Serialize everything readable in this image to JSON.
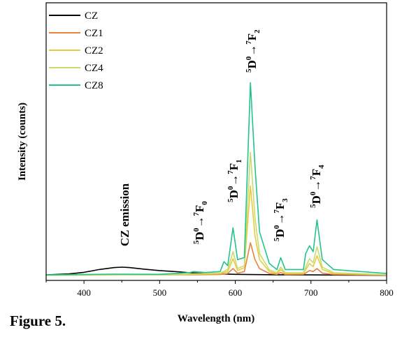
{
  "caption": "Figure 5.",
  "chart_data": {
    "type": "line",
    "xlabel": "Wavelength (nm)",
    "ylabel": "Intensity (counts)",
    "xlim": [
      350,
      800
    ],
    "ylim": [
      0,
      100
    ],
    "xticks": [
      400,
      500,
      600,
      700,
      800
    ],
    "grid": false,
    "legend_position": "top-left",
    "series": [
      {
        "name": "CZ",
        "color": "#000000",
        "points": [
          [
            350,
            0.3
          ],
          [
            380,
            0.8
          ],
          [
            400,
            1.6
          ],
          [
            420,
            3.0
          ],
          [
            440,
            4.0
          ],
          [
            450,
            4.2
          ],
          [
            460,
            4.0
          ],
          [
            480,
            3.2
          ],
          [
            500,
            2.5
          ],
          [
            520,
            2.0
          ],
          [
            540,
            1.4
          ],
          [
            560,
            1.0
          ],
          [
            580,
            0.8
          ],
          [
            600,
            0.6
          ],
          [
            620,
            0.5
          ],
          [
            650,
            0.4
          ],
          [
            700,
            0.3
          ],
          [
            750,
            0.2
          ],
          [
            800,
            0.1
          ]
        ]
      },
      {
        "name": "CZ1",
        "color": "#e8823c",
        "points": [
          [
            350,
            0.2
          ],
          [
            500,
            0.3
          ],
          [
            540,
            0.4
          ],
          [
            580,
            0.5
          ],
          [
            590,
            1.0
          ],
          [
            597,
            3.5
          ],
          [
            603,
            1.2
          ],
          [
            612,
            2.0
          ],
          [
            620,
            16.5
          ],
          [
            626,
            8.0
          ],
          [
            632,
            3.5
          ],
          [
            645,
            1.0
          ],
          [
            655,
            0.6
          ],
          [
            660,
            1.5
          ],
          [
            666,
            0.5
          ],
          [
            690,
            0.6
          ],
          [
            698,
            2.5
          ],
          [
            703,
            2.0
          ],
          [
            708,
            3.5
          ],
          [
            715,
            1.2
          ],
          [
            730,
            0.5
          ],
          [
            800,
            0.2
          ]
        ]
      },
      {
        "name": "CZ2",
        "color": "#e6cc3c",
        "points": [
          [
            350,
            0.2
          ],
          [
            500,
            0.3
          ],
          [
            540,
            0.6
          ],
          [
            580,
            0.9
          ],
          [
            590,
            2.0
          ],
          [
            597,
            8.5
          ],
          [
            603,
            2.5
          ],
          [
            612,
            4.0
          ],
          [
            620,
            45.0
          ],
          [
            626,
            20.0
          ],
          [
            632,
            8.0
          ],
          [
            645,
            2.0
          ],
          [
            655,
            1.0
          ],
          [
            660,
            3.0
          ],
          [
            666,
            1.0
          ],
          [
            690,
            1.0
          ],
          [
            698,
            6.0
          ],
          [
            703,
            4.5
          ],
          [
            708,
            10.0
          ],
          [
            715,
            3.0
          ],
          [
            730,
            1.0
          ],
          [
            800,
            0.3
          ]
        ]
      },
      {
        "name": "CZ4",
        "color": "#c8dc6e",
        "points": [
          [
            350,
            0.2
          ],
          [
            500,
            0.3
          ],
          [
            540,
            0.8
          ],
          [
            580,
            1.2
          ],
          [
            590,
            3.0
          ],
          [
            597,
            12.0
          ],
          [
            603,
            3.5
          ],
          [
            612,
            5.0
          ],
          [
            620,
            62.0
          ],
          [
            626,
            29.0
          ],
          [
            632,
            11.0
          ],
          [
            645,
            2.8
          ],
          [
            655,
            1.4
          ],
          [
            660,
            4.2
          ],
          [
            666,
            1.4
          ],
          [
            690,
            1.4
          ],
          [
            698,
            8.5
          ],
          [
            703,
            6.5
          ],
          [
            708,
            14.5
          ],
          [
            715,
            4.2
          ],
          [
            730,
            1.4
          ],
          [
            800,
            0.4
          ]
        ]
      },
      {
        "name": "CZ8",
        "color": "#23c38c",
        "points": [
          [
            350,
            0.3
          ],
          [
            440,
            0.7
          ],
          [
            500,
            0.6
          ],
          [
            520,
            1.0
          ],
          [
            540,
            1.5
          ],
          [
            545,
            2.0
          ],
          [
            560,
            1.5
          ],
          [
            580,
            2.0
          ],
          [
            585,
            7.0
          ],
          [
            590,
            5.0
          ],
          [
            597,
            24.0
          ],
          [
            603,
            8.0
          ],
          [
            612,
            9.0
          ],
          [
            620,
            97.0
          ],
          [
            626,
            55.0
          ],
          [
            632,
            22.0
          ],
          [
            645,
            6.0
          ],
          [
            655,
            3.0
          ],
          [
            660,
            9.0
          ],
          [
            666,
            3.0
          ],
          [
            690,
            3.0
          ],
          [
            693,
            11.0
          ],
          [
            698,
            15.0
          ],
          [
            703,
            12.0
          ],
          [
            708,
            28.0
          ],
          [
            715,
            8.0
          ],
          [
            730,
            3.0
          ],
          [
            800,
            1.0
          ]
        ]
      }
    ],
    "annotations": [
      {
        "id": "cz-emission",
        "text": "CZ emission"
      },
      {
        "id": "f0",
        "prefix_sup": "5",
        "main1": "D",
        "sup1": "0",
        "arrow": "→",
        "prefix_sup2": "7",
        "main2": "F",
        "sub2": "0"
      },
      {
        "id": "f1",
        "prefix_sup": "5",
        "main1": "D",
        "sup1": "0",
        "arrow": "→",
        "prefix_sup2": "7",
        "main2": "F",
        "sub2": "1"
      },
      {
        "id": "f2",
        "prefix_sup": "5",
        "main1": "D",
        "sup1": "0",
        "arrow": "→",
        "prefix_sup2": "7",
        "main2": "F",
        "sub2": "2"
      },
      {
        "id": "f3",
        "prefix_sup": "5",
        "main1": "D",
        "sup1": "0",
        "arrow": "→",
        "prefix_sup2": "7",
        "main2": "F",
        "sub2": "3"
      },
      {
        "id": "f4",
        "prefix_sup": "5",
        "main1": "D",
        "sup1": "0",
        "arrow": "→",
        "prefix_sup2": "7",
        "main2": "F",
        "sub2": "4"
      }
    ]
  }
}
